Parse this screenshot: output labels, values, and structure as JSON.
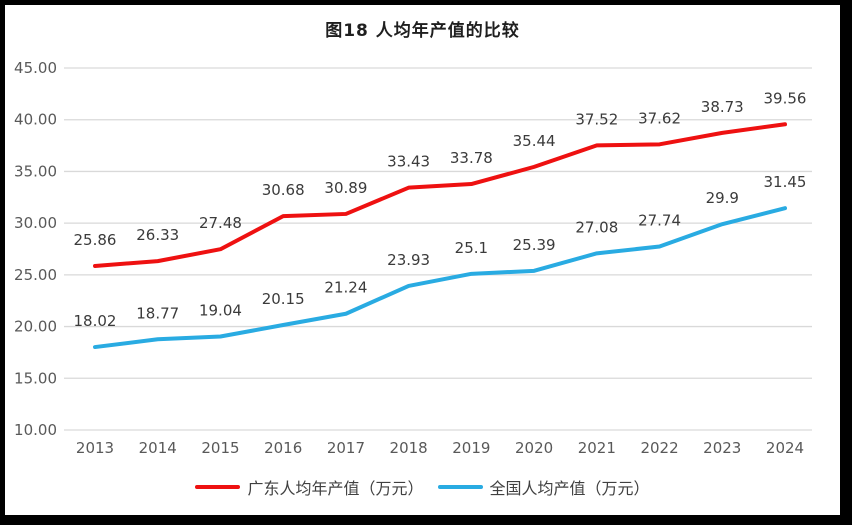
{
  "title": "图18 人均年产值的比较",
  "chart_data": {
    "type": "line",
    "x": [
      "2013",
      "2014",
      "2015",
      "2016",
      "2017",
      "2018",
      "2019",
      "2020",
      "2021",
      "2022",
      "2023",
      "2024"
    ],
    "series": [
      {
        "name": "广东人均年产值（万元）",
        "color": "#ee1111",
        "values": [
          25.86,
          26.33,
          27.48,
          30.68,
          30.89,
          33.43,
          33.78,
          35.44,
          37.52,
          37.62,
          38.73,
          39.56
        ]
      },
      {
        "name": "全国人均产值（万元）",
        "color": "#29abe2",
        "values": [
          18.02,
          18.77,
          19.04,
          20.15,
          21.24,
          23.93,
          25.1,
          25.39,
          27.08,
          27.74,
          29.9,
          31.45
        ]
      }
    ],
    "ylim": [
      10,
      45
    ],
    "ytick_values": [
      10,
      15,
      20,
      25,
      30,
      35,
      40,
      45
    ],
    "ytick_labels": [
      "10.00",
      "15.00",
      "20.00",
      "25.00",
      "30.00",
      "35.00",
      "40.00",
      "45.00"
    ],
    "grid": true,
    "data_labels": true,
    "legend_position": "bottom"
  },
  "colors": {
    "gridline": "#d9d9d9",
    "axis_text": "#595959",
    "data_label_text": "#3b3b3b",
    "frame_border": "#000000",
    "background": "#ffffff"
  }
}
